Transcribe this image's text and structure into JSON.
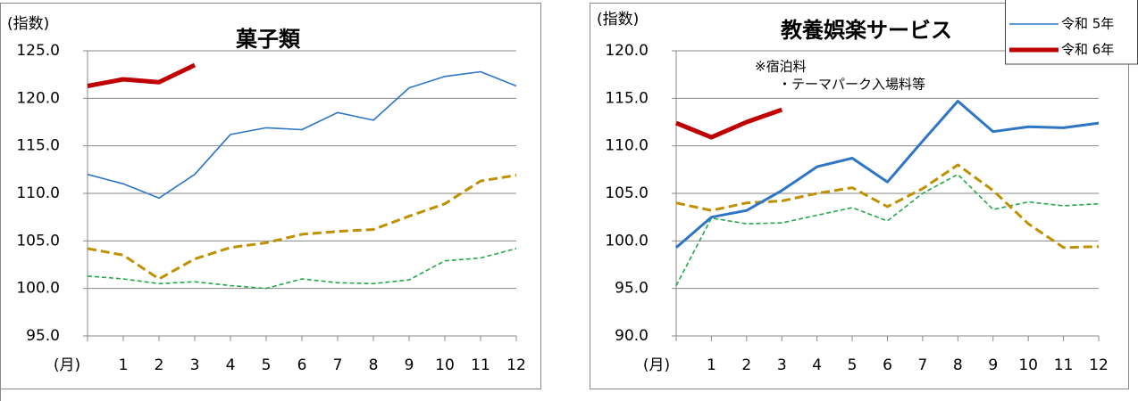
{
  "chart_data": [
    {
      "type": "line",
      "title": "菓子類",
      "y_label": "(指数)",
      "x_label": "(月)",
      "categories": [
        null,
        "1",
        "2",
        "3",
        "4",
        "5",
        "6",
        "7",
        "8",
        "9",
        "10",
        "11",
        "12"
      ],
      "ylim": [
        95,
        125
      ],
      "yticks": [
        {
          "value": 95,
          "label": "95.0"
        },
        {
          "value": 100,
          "label": "100.0"
        },
        {
          "value": 105,
          "label": "105.0"
        },
        {
          "value": 110,
          "label": "110.0"
        },
        {
          "value": 115,
          "label": "115.0"
        },
        {
          "value": 120,
          "label": "120.0"
        },
        {
          "value": 125,
          "label": "125.0"
        }
      ],
      "grid": true,
      "series": [
        {
          "name": "令和 5年",
          "color": "#2e75c6",
          "width": 1.6,
          "dash": false,
          "values": [
            112.0,
            111.0,
            109.5,
            112.0,
            116.2,
            116.9,
            116.7,
            118.5,
            117.7,
            121.1,
            122.3,
            122.8,
            121.3
          ]
        },
        {
          "name": "令和 6年",
          "color": "#c00000",
          "width": 5,
          "dash": false,
          "values": [
            121.3,
            122.0,
            121.7,
            123.5,
            null,
            null,
            null,
            null,
            null,
            null,
            null,
            null,
            null
          ]
        },
        {
          "color": "#bf9000",
          "width": 3,
          "dash": true,
          "values": [
            104.2,
            103.5,
            101.0,
            103.1,
            104.3,
            104.8,
            105.7,
            106.0,
            106.2,
            107.6,
            108.9,
            111.3,
            111.9
          ]
        },
        {
          "color": "#22a84a",
          "width": 1.6,
          "dash": true,
          "values": [
            101.3,
            101.0,
            100.5,
            100.7,
            100.3,
            100.0,
            101.0,
            100.6,
            100.5,
            100.9,
            102.9,
            103.2,
            104.2
          ]
        }
      ]
    },
    {
      "type": "line",
      "title": "教養娯楽サービス",
      "y_label": "(指数)",
      "x_label": "(月)",
      "annotations": [
        "※宿泊料",
        "・テーマパーク入場料等"
      ],
      "legend": "top-right",
      "categories": [
        null,
        "1",
        "2",
        "3",
        "4",
        "5",
        "6",
        "7",
        "8",
        "9",
        "10",
        "11",
        "12"
      ],
      "ylim": [
        90,
        120
      ],
      "yticks": [
        {
          "value": 90,
          "label": "90.0"
        },
        {
          "value": 95,
          "label": "95.0"
        },
        {
          "value": 100,
          "label": "100.0"
        },
        {
          "value": 105,
          "label": "105.0"
        },
        {
          "value": 110,
          "label": "110.0"
        },
        {
          "value": 115,
          "label": "115.0"
        },
        {
          "value": 120,
          "label": "120.0"
        }
      ],
      "grid": true,
      "series": [
        {
          "name": "令和 5年",
          "color": "#2e75c6",
          "width": 3,
          "dash": false,
          "values": [
            99.3,
            102.5,
            103.2,
            105.3,
            107.8,
            108.7,
            106.2,
            110.5,
            114.7,
            111.5,
            112.0,
            111.9,
            112.4
          ]
        },
        {
          "name": "令和 6年",
          "color": "#c00000",
          "width": 5,
          "dash": false,
          "values": [
            112.4,
            110.9,
            112.5,
            113.8,
            null,
            null,
            null,
            null,
            null,
            null,
            null,
            null,
            null
          ]
        },
        {
          "color": "#bf9000",
          "width": 3,
          "dash": true,
          "values": [
            104.0,
            103.2,
            104.0,
            104.2,
            105.0,
            105.6,
            103.6,
            105.5,
            108.0,
            105.3,
            101.8,
            99.3,
            99.4
          ]
        },
        {
          "color": "#22a84a",
          "width": 1.6,
          "dash": true,
          "values": [
            95.3,
            102.4,
            101.8,
            101.9,
            102.7,
            103.5,
            102.1,
            105.0,
            107.0,
            103.3,
            104.1,
            103.7,
            103.9
          ]
        }
      ]
    }
  ]
}
